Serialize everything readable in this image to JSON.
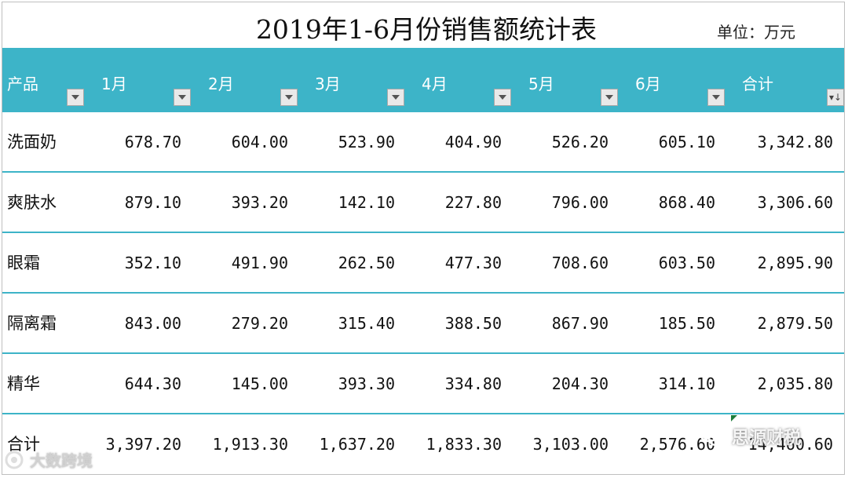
{
  "title": "2019年1-6月份销售额统计表",
  "unit_label": "单位：万元",
  "colors": {
    "header_bg": "#3db4c8",
    "row_border": "#3db4c8",
    "header_text": "#ffffff"
  },
  "columns": [
    "产品",
    "1月",
    "2月",
    "3月",
    "4月",
    "5月",
    "6月",
    "合计"
  ],
  "rows": [
    {
      "name": "洗面奶",
      "values": [
        "678.70",
        "604.00",
        "523.90",
        "404.90",
        "526.20",
        "605.10",
        "3,342.80"
      ]
    },
    {
      "name": "爽肤水",
      "values": [
        "879.10",
        "393.20",
        "142.10",
        "227.80",
        "796.00",
        "868.40",
        "3,306.60"
      ]
    },
    {
      "name": "眼霜",
      "values": [
        "352.10",
        "491.90",
        "262.50",
        "477.30",
        "708.60",
        "603.50",
        "2,895.90"
      ]
    },
    {
      "name": "隔离霜",
      "values": [
        "843.00",
        "279.20",
        "315.40",
        "388.50",
        "867.90",
        "185.50",
        "2,879.50"
      ]
    },
    {
      "name": "精华",
      "values": [
        "644.30",
        "145.00",
        "393.30",
        "334.80",
        "204.30",
        "314.10",
        "2,035.80"
      ]
    },
    {
      "name": "合计",
      "values": [
        "3,397.20",
        "1,913.30",
        "1,637.20",
        "1,833.30",
        "3,103.00",
        "2,576.60",
        "14,460.60"
      ]
    }
  ],
  "watermarks": {
    "left": "大数跨境",
    "right": "思源财税"
  }
}
